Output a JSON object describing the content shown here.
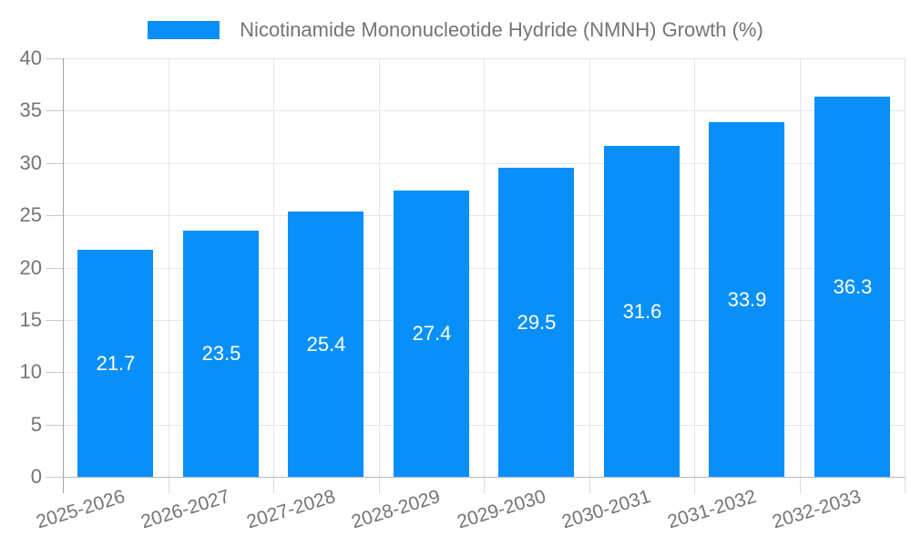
{
  "legend": {
    "swatch_icon": "series-color-swatch",
    "label": "Nicotinamide Mononucleotide Hydride (NMNH) Growth (%)"
  },
  "colors": {
    "bar": "#0990f8",
    "value_label": "#ffffff",
    "tick_text": "#757575",
    "grid": "#e6e6e6",
    "axis": "#a3a3a3"
  },
  "chart_data": {
    "type": "bar",
    "title": "Nicotinamide Mononucleotide Hydride (NMNH) Growth (%)",
    "categories": [
      "2025-2026",
      "2026-2027",
      "2027-2028",
      "2028-2029",
      "2029-2030",
      "2030-2031",
      "2031-2032",
      "2032-2033"
    ],
    "values": [
      21.7,
      23.5,
      25.4,
      27.4,
      29.5,
      31.6,
      33.9,
      36.3
    ],
    "value_labels": [
      "21.7",
      "23.5",
      "25.4",
      "27.4",
      "29.5",
      "31.6",
      "33.9",
      "36.3"
    ],
    "yticks": [
      0,
      5,
      10,
      15,
      20,
      25,
      30,
      35,
      40
    ],
    "ylim": [
      0,
      40
    ],
    "xlabel": "",
    "ylabel": "",
    "grid": true,
    "legend_position": "top",
    "bar_color": "#0990f8",
    "value_labels_inside_bars": true
  }
}
